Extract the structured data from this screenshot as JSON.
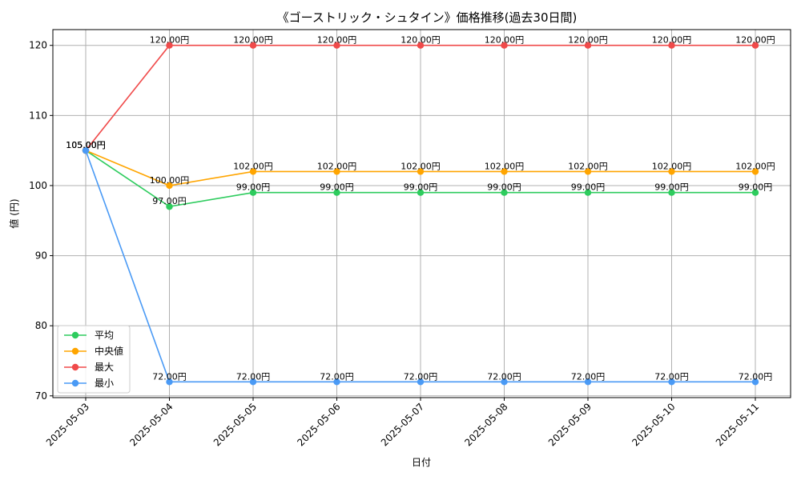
{
  "chart_data": {
    "type": "line",
    "title": "《ゴーストリック・シュタイン》価格推移(過去30日間)",
    "xlabel": "日付",
    "ylabel": "値 (円)",
    "categories": [
      "2025-05-03",
      "2025-05-04",
      "2025-05-05",
      "2025-05-06",
      "2025-05-07",
      "2025-05-08",
      "2025-05-09",
      "2025-05-10",
      "2025-05-11"
    ],
    "ylim": [
      69.75,
      122.25
    ],
    "yticks": [
      70,
      80,
      90,
      100,
      110,
      120
    ],
    "grid": true,
    "legend_position": "lower-left",
    "value_suffix": "円",
    "series": [
      {
        "name": "平均",
        "color": "#2ecc5e",
        "values": [
          105,
          97,
          99,
          99,
          99,
          99,
          99,
          99,
          99
        ]
      },
      {
        "name": "中央値",
        "color": "#ffa500",
        "values": [
          105,
          100,
          102,
          102,
          102,
          102,
          102,
          102,
          102
        ]
      },
      {
        "name": "最大",
        "color": "#f04a4a",
        "values": [
          105,
          120,
          120,
          120,
          120,
          120,
          120,
          120,
          120
        ]
      },
      {
        "name": "最小",
        "color": "#4a9af5",
        "values": [
          105,
          72,
          72,
          72,
          72,
          72,
          72,
          72,
          72
        ]
      }
    ],
    "data_labels": [
      [
        "105.00円",
        "97.00円",
        "99.00円",
        "99.00円",
        "99.00円",
        "99.00円",
        "99.00円",
        "99.00円",
        "99.00円"
      ],
      [
        "105.00円",
        "100.00円",
        "102.00円",
        "102.00円",
        "102.00円",
        "102.00円",
        "102.00円",
        "102.00円",
        "102.00円"
      ],
      [
        "105.00円",
        "120.00円",
        "120.00円",
        "120.00円",
        "120.00円",
        "120.00円",
        "120.00円",
        "120.00円",
        "120.00円"
      ],
      [
        "105.00円",
        "72.00円",
        "72.00円",
        "72.00円",
        "72.00円",
        "72.00円",
        "72.00円",
        "72.00円",
        "72.00円"
      ]
    ]
  }
}
